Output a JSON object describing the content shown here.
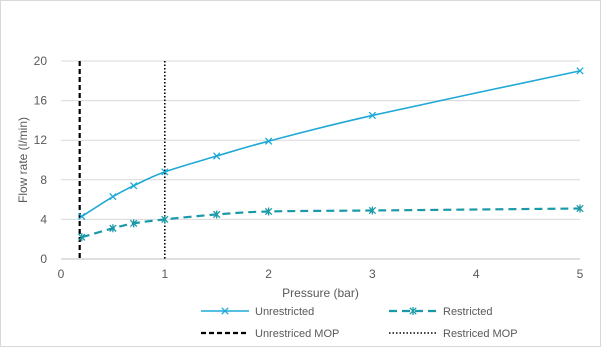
{
  "chart_data": {
    "type": "line",
    "title": "",
    "xlabel": "Pressure (bar)",
    "ylabel": "Flow rate (l/min)",
    "xlim": [
      0,
      5
    ],
    "ylim": [
      0,
      20
    ],
    "x_ticks": [
      "0",
      "1",
      "2",
      "3",
      "4",
      "5"
    ],
    "y_ticks": [
      "0",
      "4",
      "8",
      "12",
      "16",
      "20"
    ],
    "grid": "horizontal",
    "legend_position": "bottom",
    "series": [
      {
        "name": "Unrestricted",
        "color": "#1fa9d6",
        "style": "solid",
        "marker": "x",
        "x": [
          0.2,
          0.5,
          0.7,
          1.0,
          1.5,
          2.0,
          3.0,
          5.0
        ],
        "y": [
          4.3,
          6.3,
          7.4,
          8.8,
          10.4,
          11.9,
          14.5,
          19.0
        ]
      },
      {
        "name": "Restricted",
        "color": "#1a9aa8",
        "style": "dashed",
        "marker": "star",
        "x": [
          0.2,
          0.5,
          0.7,
          1.0,
          1.5,
          2.0,
          3.0,
          5.0
        ],
        "y": [
          2.2,
          3.1,
          3.6,
          4.0,
          4.5,
          4.8,
          4.9,
          5.1
        ]
      }
    ],
    "reference_lines": [
      {
        "name": "Unrestriced MOP",
        "x": 0.18,
        "color": "#000000",
        "style": "dashed"
      },
      {
        "name": "Restriced MOP",
        "x": 1.0,
        "color": "#000000",
        "style": "dotted"
      }
    ]
  }
}
